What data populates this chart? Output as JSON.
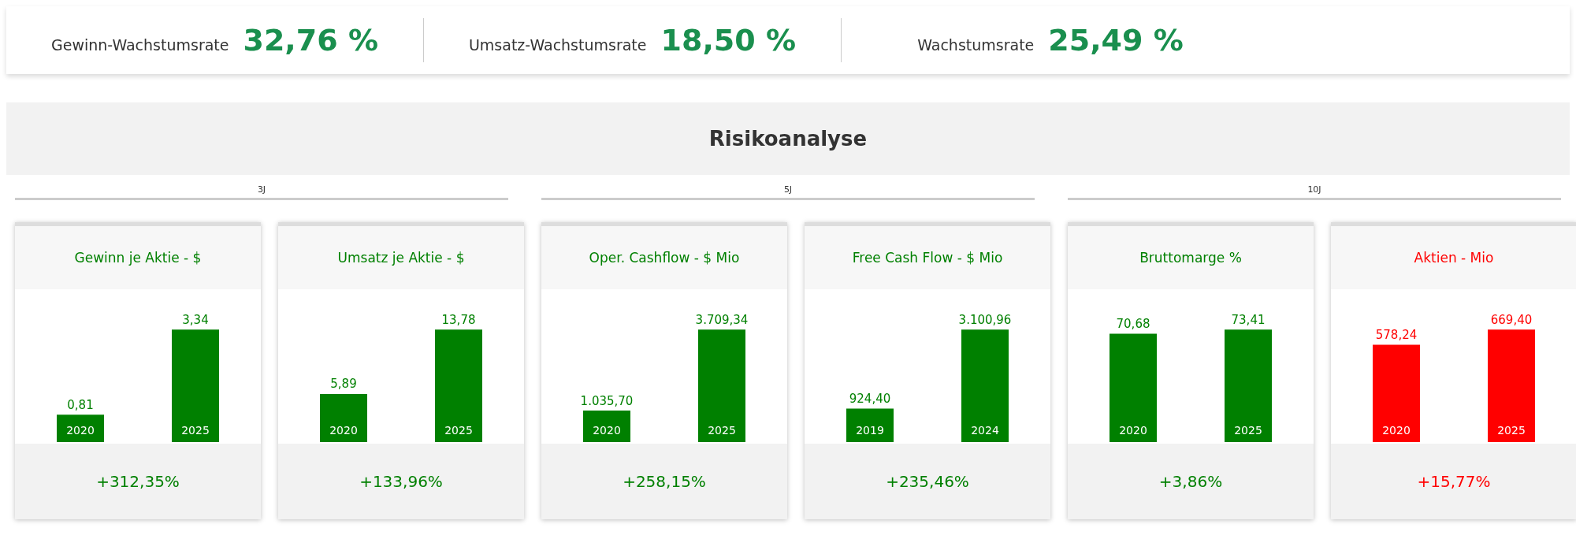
{
  "chart_data": [
    {
      "type": "other",
      "title": "Risikoanalyse",
      "categories": [
        "Gewinn-Wachstumsrate",
        "Umsatz-Wachstumsrate",
        "Wachstumsrate"
      ],
      "values": [
        32.76,
        18.5,
        25.49
      ],
      "value_labels": [
        "32,76 %",
        "18,50 %",
        "25,49 %"
      ],
      "annotations": [
        "3J",
        "5J",
        "10J"
      ]
    },
    {
      "type": "bar",
      "title": "Gewinn je Aktie - $",
      "categories": [
        "2020",
        "2025"
      ],
      "values": [
        0.81,
        3.34
      ],
      "value_labels": [
        "0,81",
        "3,34"
      ],
      "color": "#008000",
      "annotations": [
        "+312,35%"
      ]
    },
    {
      "type": "bar",
      "title": "Umsatz je Aktie - $",
      "categories": [
        "2020",
        "2025"
      ],
      "values": [
        5.89,
        13.78
      ],
      "value_labels": [
        "5,89",
        "13,78"
      ],
      "color": "#008000",
      "annotations": [
        "+133,96%"
      ]
    },
    {
      "type": "bar",
      "title": "Oper. Cashflow - $ Mio",
      "categories": [
        "2020",
        "2025"
      ],
      "values": [
        1035.7,
        3709.34
      ],
      "value_labels": [
        "1.035,70",
        "3.709,34"
      ],
      "color": "#008000",
      "annotations": [
        "+258,15%"
      ]
    },
    {
      "type": "bar",
      "title": "Free Cash Flow - $ Mio",
      "categories": [
        "2019",
        "2024"
      ],
      "values": [
        924.4,
        3100.96
      ],
      "value_labels": [
        "924,40",
        "3.100,96"
      ],
      "color": "#008000",
      "annotations": [
        "+235,46%"
      ]
    },
    {
      "type": "bar",
      "title": "Bruttomarge %",
      "categories": [
        "2020",
        "2025"
      ],
      "values": [
        70.68,
        73.41
      ],
      "value_labels": [
        "70,68",
        "73,41"
      ],
      "color": "#008000",
      "annotations": [
        "+3,86%"
      ]
    },
    {
      "type": "bar",
      "title": "Aktien - Mio",
      "categories": [
        "2020",
        "2025"
      ],
      "values": [
        578.24,
        669.4
      ],
      "value_labels": [
        "578,24",
        "669,40"
      ],
      "color": "#ff0000",
      "annotations": [
        "+15,77%"
      ]
    }
  ]
}
